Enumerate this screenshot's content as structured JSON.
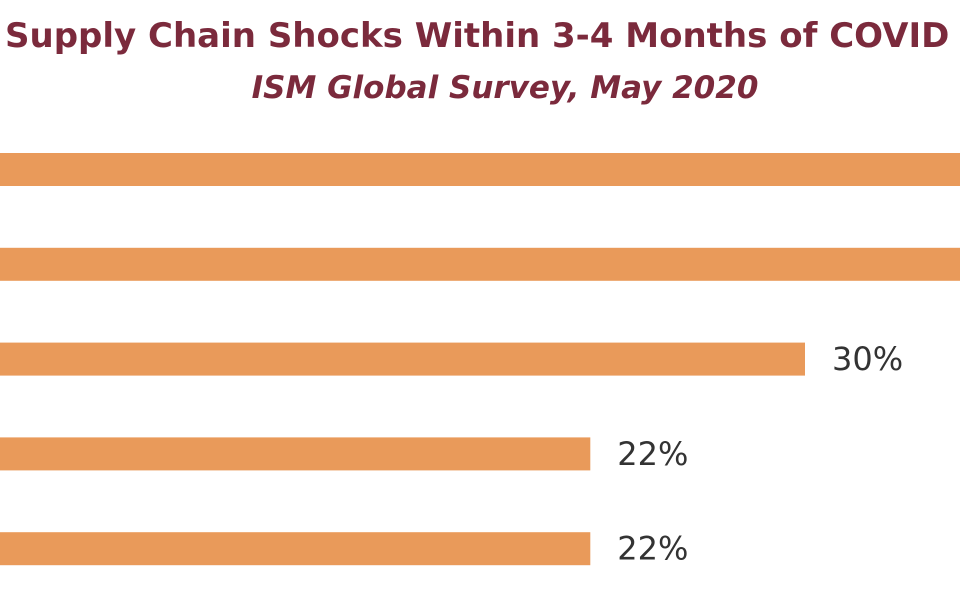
{
  "chart_data": {
    "type": "bar",
    "orientation": "horizontal",
    "title": "Supply Chain Shocks Within 3-4 Months of COVID",
    "subtitle": "ISM Global Survey, May 2020",
    "values": [
      null,
      null,
      30,
      22,
      22
    ],
    "value_labels": [
      "",
      "",
      "30%",
      "22%",
      "22%"
    ],
    "xlim": [
      0,
      30
    ],
    "grid": false,
    "legend": "none",
    "bar_color": "#e99a5a",
    "title_color": "#7b2a3c",
    "label_color": "#333333"
  }
}
